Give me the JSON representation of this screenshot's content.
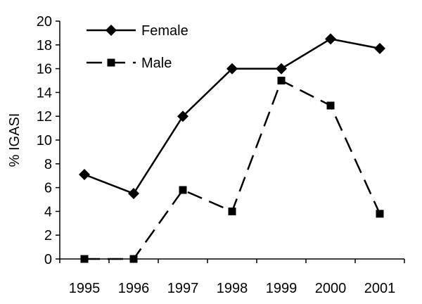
{
  "chart_data": {
    "type": "line",
    "title": "",
    "xlabel": "",
    "ylabel": "% IGASI",
    "categories": [
      "1995",
      "1996",
      "1997",
      "1998",
      "1999",
      "2000",
      "2001"
    ],
    "ylim": [
      0,
      20
    ],
    "yticks": [
      "0",
      "2",
      "4",
      "6",
      "8",
      "10",
      "12",
      "14",
      "16",
      "18",
      "20"
    ],
    "grid": false,
    "legend_position": "top-left",
    "series": [
      {
        "name": "Female",
        "values": [
          7.1,
          5.5,
          12.0,
          16.0,
          16.0,
          18.5,
          17.7
        ],
        "line_style": "solid",
        "marker": "diamond",
        "color": "#000000"
      },
      {
        "name": "Male",
        "values": [
          0.0,
          0.0,
          5.8,
          4.0,
          15.0,
          12.9,
          3.8
        ],
        "line_style": "dashed",
        "marker": "square",
        "color": "#000000"
      }
    ]
  }
}
